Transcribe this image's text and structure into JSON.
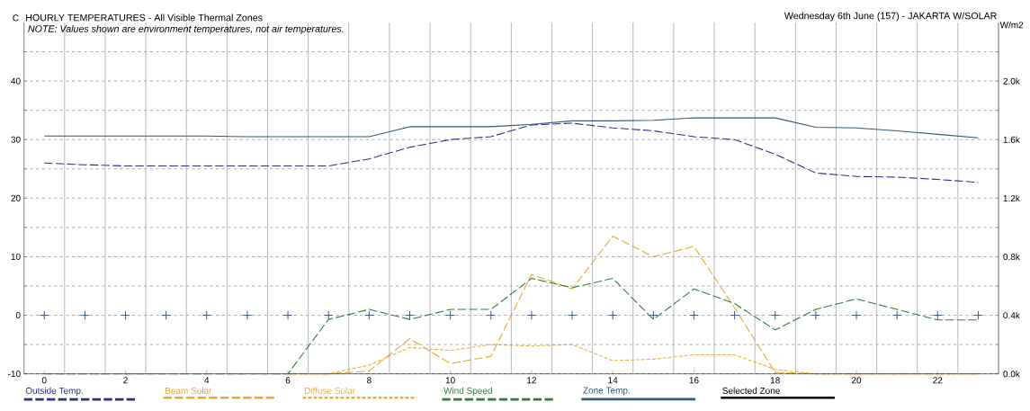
{
  "chart_data": {
    "type": "line",
    "title": "HOURLY TEMPERATURES - All Visible Thermal Zones",
    "subtitle": "Wednesday 6th June (157) - JAKARTA W/SOLAR",
    "ylabel": "C",
    "y2label": "W/m2",
    "annotations": [
      "NOTE: Values shown are environment temperatures, not air temperatures."
    ],
    "x": [
      0,
      1,
      2,
      3,
      4,
      5,
      6,
      7,
      8,
      9,
      10,
      11,
      12,
      13,
      14,
      15,
      16,
      17,
      18,
      19,
      20,
      21,
      22,
      23
    ],
    "xlim": [
      -0.5,
      23.5
    ],
    "xticks": [
      0,
      2,
      4,
      6,
      8,
      10,
      12,
      14,
      16,
      18,
      20,
      22,
      {
        "value": -0.5,
        "label": null
      },
      {
        "value": 0.5,
        "label": null
      },
      {
        "value": 1.5,
        "label": null
      },
      {
        "value": 2.5,
        "label": null
      },
      {
        "value": 3.5,
        "label": null
      },
      {
        "value": 4.5,
        "label": null
      },
      {
        "value": 5.5,
        "label": null
      },
      {
        "value": 6.5,
        "label": null
      },
      {
        "value": 7.5,
        "label": null
      },
      {
        "value": 8.5,
        "label": null
      },
      {
        "value": 9.5,
        "label": null
      },
      {
        "value": 10.5,
        "label": null
      },
      {
        "value": 11.5,
        "label": null
      },
      {
        "value": 12.5,
        "label": null
      },
      {
        "value": 13.5,
        "label": null
      },
      {
        "value": 14.5,
        "label": null
      },
      {
        "value": 15.5,
        "label": null
      },
      {
        "value": 16.5,
        "label": null
      },
      {
        "value": 17.5,
        "label": null
      },
      {
        "value": 18.5,
        "label": null
      },
      {
        "value": 19.5,
        "label": null
      },
      {
        "value": 20.5,
        "label": null
      },
      {
        "value": 21.5,
        "label": null
      },
      {
        "value": 22.5,
        "label": null
      },
      {
        "value": 23.5,
        "label": null
      }
    ],
    "ylim": [
      -10,
      50
    ],
    "yticks": [
      -10,
      {
        "value": -5,
        "label": null
      },
      0,
      {
        "value": 5,
        "label": null
      },
      10,
      {
        "value": 15,
        "label": null
      },
      20,
      {
        "value": 25,
        "label": null
      },
      30,
      {
        "value": 35,
        "label": null
      },
      40,
      {
        "value": 45,
        "label": null
      }
    ],
    "y2lim": [
      0,
      2400
    ],
    "y2ticks": [
      {
        "value": 0,
        "label": "0.0k"
      },
      {
        "value": 200,
        "label": null
      },
      {
        "value": 400,
        "label": "0.4k"
      },
      {
        "value": 600,
        "label": null
      },
      {
        "value": 800,
        "label": "0.8k"
      },
      {
        "value": 1000,
        "label": null
      },
      {
        "value": 1200,
        "label": "1.2k"
      },
      {
        "value": 1400,
        "label": null
      },
      {
        "value": 1600,
        "label": "1.6k"
      },
      {
        "value": 1800,
        "label": null
      },
      {
        "value": 2000,
        "label": "2.0k"
      },
      {
        "value": 2200,
        "label": null
      }
    ],
    "grid": true,
    "legend": "bottom",
    "series": [
      {
        "name": "Outside Temp.",
        "color": "#2e2e8a",
        "line_style": "dashed",
        "values": [
          26,
          25.7,
          25.5,
          25.5,
          25.5,
          25.5,
          25.5,
          25.5,
          26.7,
          28.7,
          30,
          30.5,
          32.5,
          32.8,
          32,
          31.5,
          30.5,
          30,
          27.5,
          24.3,
          23.7,
          23.6,
          23.2,
          22.7
        ]
      },
      {
        "name": "Beam Solar",
        "color": "#e8a828",
        "line_style": "dashed",
        "axis": "y2",
        "values": [
          null,
          null,
          null,
          null,
          null,
          null,
          0,
          0,
          20,
          240,
          70,
          120,
          680,
          580,
          940,
          800,
          870,
          450,
          10,
          0,
          0,
          0,
          0,
          0
        ]
      },
      {
        "name": "Diffuse Solar",
        "color": "#e8b040",
        "line_style": "dotted",
        "axis": "y2",
        "values": [
          null,
          null,
          null,
          null,
          null,
          null,
          0,
          0,
          60,
          180,
          160,
          200,
          190,
          200,
          90,
          100,
          130,
          130,
          30,
          0,
          0,
          0,
          0,
          0
        ]
      },
      {
        "name": "Wind Speed",
        "color": "#2e7d3a",
        "line_style": "dashed",
        "values": [
          -10,
          -10,
          -10,
          -10,
          -10,
          -10,
          -10,
          -0.7,
          1,
          -0.7,
          1,
          1,
          6.3,
          4.7,
          6.3,
          -0.7,
          4.5,
          2,
          -2.5,
          1,
          2.8,
          1,
          -0.8,
          -0.8
        ]
      },
      {
        "name": "Zone Temp.",
        "color": "#2f5a78",
        "line_style": "solid",
        "values": [
          30.6,
          30.6,
          30.6,
          30.6,
          30.6,
          30.5,
          30.5,
          30.5,
          30.5,
          32.2,
          32.2,
          32.2,
          32.6,
          33.2,
          33.2,
          33.3,
          33.7,
          33.7,
          33.7,
          32.1,
          32,
          31.5,
          30.9,
          30.3
        ]
      },
      {
        "name": "Selected Zone",
        "color": "#000000",
        "line_style": "solid",
        "values": [
          null,
          null,
          null,
          null,
          null,
          null,
          null,
          null,
          null,
          null,
          null,
          null,
          null,
          null,
          null,
          null,
          null,
          null,
          null,
          null,
          null,
          null,
          null,
          null
        ]
      },
      {
        "type": "scatter",
        "color": "#2f4f6f",
        "marker": "cross",
        "values": [
          0,
          0,
          0,
          0,
          0,
          0,
          0,
          0,
          0,
          0,
          0,
          0,
          0,
          0,
          0,
          0,
          0,
          0,
          0,
          0,
          0,
          0,
          0,
          0
        ]
      }
    ]
  }
}
